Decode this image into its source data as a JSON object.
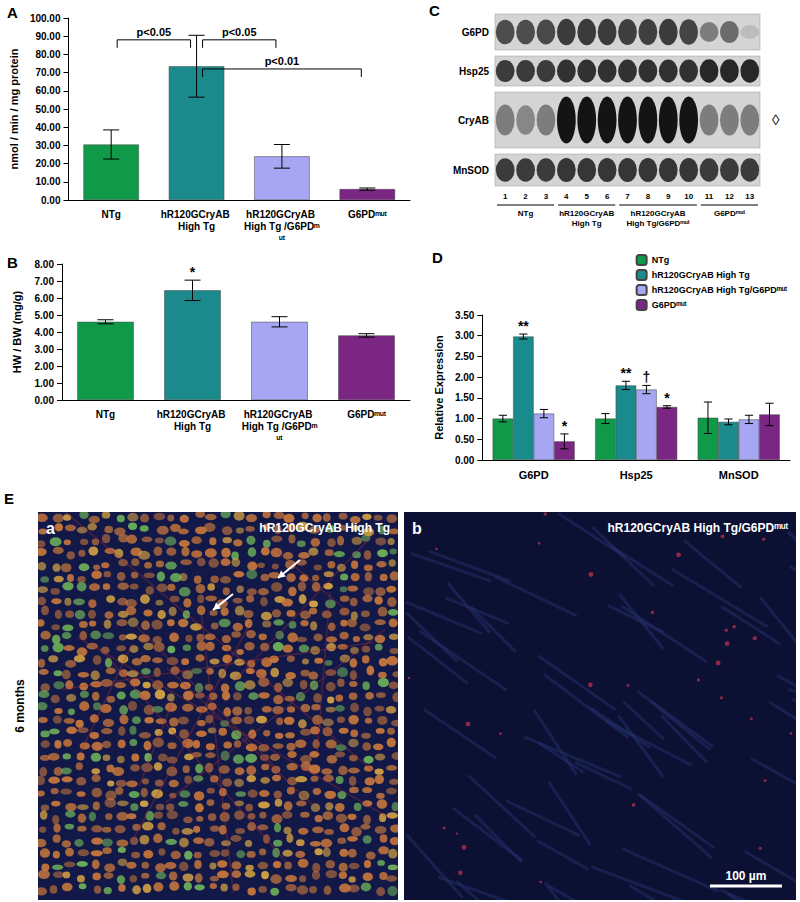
{
  "chart_data": [
    {
      "type": "bar",
      "title": "A",
      "ylabel": "nmol / min / mg protein",
      "categories": [
        "NTg",
        "hR120GCryAB High Tg",
        "hR120GCryAB High Tg /G6PDᵐᵘᵗ",
        "G6PDᵐᵘᵗ"
      ],
      "values": [
        30.5,
        73.5,
        24.0,
        6.0
      ],
      "errors": [
        8.0,
        17.0,
        6.5,
        0.6
      ],
      "colors": [
        "#11994a",
        "#1b8a8c",
        "#a6a6f2",
        "#7b2683"
      ],
      "ylim": [
        0,
        100
      ],
      "yticks": [
        {
          "value": 0,
          "label": "0.00"
        },
        {
          "value": 10,
          "label": "10.00"
        },
        {
          "value": 20,
          "label": "20.00"
        },
        {
          "value": 30,
          "label": "30.00"
        },
        {
          "value": 40,
          "label": "40.00"
        },
        {
          "value": 50,
          "label": "50.00"
        },
        {
          "value": 60,
          "label": "60.00"
        },
        {
          "value": 70,
          "label": "70.00"
        },
        {
          "value": 80,
          "label": "80.00"
        },
        {
          "value": 90,
          "label": "90.00"
        },
        {
          "value": 100,
          "label": "100.00"
        }
      ],
      "grid": false,
      "brackets": [
        {
          "from": "NTg",
          "to": "hR120GCryAB High Tg",
          "level": 88,
          "text": "p<0.05"
        },
        {
          "from": "hR120GCryAB High Tg",
          "to": "hR120GCryAB High Tg /G6PDᵐᵘᵗ",
          "level": 88,
          "text": "p<0.05"
        },
        {
          "from": "hR120GCryAB High Tg",
          "to": "G6PDᵐᵘᵗ",
          "level": 72,
          "text": "p<0.01"
        }
      ]
    },
    {
      "type": "bar",
      "title": "B",
      "ylabel": "HW / BW (mg/g)",
      "categories": [
        "NTg",
        "hR120GCryAB High Tg",
        "hR120GCryAB High Tg /G6PDᵐᵘᵗ",
        "G6PDᵐᵘᵗ"
      ],
      "values": [
        4.6,
        6.45,
        4.6,
        3.8
      ],
      "errors": [
        0.12,
        0.6,
        0.3,
        0.1
      ],
      "colors": [
        "#11994a",
        "#1b8a8c",
        "#a6a6f2",
        "#7b2683"
      ],
      "ylim": [
        0,
        8
      ],
      "yticks": [
        {
          "value": 0,
          "label": "0.00"
        },
        {
          "value": 1,
          "label": "1.00"
        },
        {
          "value": 2,
          "label": "2.00"
        },
        {
          "value": 3,
          "label": "3.00"
        },
        {
          "value": 4,
          "label": "4.00"
        },
        {
          "value": 5,
          "label": "5.00"
        },
        {
          "value": 6,
          "label": "6.00"
        },
        {
          "value": 7,
          "label": "7.00"
        },
        {
          "value": 8,
          "label": "8.00"
        }
      ],
      "grid": false,
      "markers": [
        {
          "category": "hR120GCryAB High Tg",
          "text": "*"
        }
      ]
    },
    {
      "type": "bar",
      "title": "D",
      "ylabel": "Relative Expression",
      "categories": [
        "G6PD",
        "Hsp25",
        "MnSOD"
      ],
      "series": [
        {
          "name": "NTg",
          "color": "#11994a",
          "values": [
            1.0,
            1.0,
            1.02
          ],
          "errors": [
            0.08,
            0.12,
            0.38
          ]
        },
        {
          "name": "hR120GCryAB High Tg",
          "color": "#1b8a8c",
          "values": [
            2.98,
            1.8,
            0.92
          ],
          "errors": [
            0.06,
            0.1,
            0.07
          ]
        },
        {
          "name": "hR120GCryAB High Tg/G6PDᵐᵘᵗ",
          "color": "#a6a6f2",
          "values": [
            1.12,
            1.7,
            0.98
          ],
          "errors": [
            0.1,
            0.1,
            0.1
          ]
        },
        {
          "name": "G6PDᵐᵘᵗ",
          "color": "#7b2683",
          "values": [
            0.45,
            1.28,
            1.1
          ],
          "errors": [
            0.18,
            0.03,
            0.27
          ]
        }
      ],
      "ylim": [
        0,
        3.5
      ],
      "yticks": [
        {
          "value": 0,
          "label": "0.00"
        },
        {
          "value": 0.5,
          "label": "0.50"
        },
        {
          "value": 1,
          "label": "1.00"
        },
        {
          "value": 1.5,
          "label": "1.50"
        },
        {
          "value": 2,
          "label": "2.00"
        },
        {
          "value": 2.5,
          "label": "2.50"
        },
        {
          "value": 3,
          "label": "3.00"
        },
        {
          "value": 3.5,
          "label": "3.50"
        }
      ],
      "grid": false,
      "legend": "upper right",
      "markers": [
        {
          "category": "G6PD",
          "series": "hR120GCryAB High Tg",
          "text": "**"
        },
        {
          "category": "G6PD",
          "series": "G6PDᵐᵘᵗ",
          "text": "*"
        },
        {
          "category": "Hsp25",
          "series": "hR120GCryAB High Tg",
          "text": "**"
        },
        {
          "category": "Hsp25",
          "series": "hR120GCryAB High Tg/G6PDᵐᵘᵗ",
          "text": "†"
        },
        {
          "category": "Hsp25",
          "series": "G6PDᵐᵘᵗ",
          "text": "*"
        }
      ]
    }
  ],
  "blot": {
    "title": "C",
    "rows": [
      {
        "label": "G6PD",
        "bands": [
          0.7,
          0.7,
          0.72,
          0.8,
          0.8,
          0.8,
          0.78,
          0.78,
          0.8,
          0.75,
          0.45,
          0.55,
          0.12
        ]
      },
      {
        "label": "Hsp25",
        "bands": [
          0.8,
          0.8,
          0.8,
          0.85,
          0.85,
          0.85,
          0.85,
          0.85,
          0.85,
          0.85,
          0.9,
          0.9,
          0.9
        ]
      },
      {
        "label": "CryAB",
        "bands": [
          0.45,
          0.4,
          0.45,
          1,
          1,
          1,
          1,
          1,
          1,
          1,
          0.45,
          0.45,
          0.45
        ]
      },
      {
        "label": "MnSOD",
        "bands": [
          0.8,
          0.8,
          0.8,
          0.82,
          0.82,
          0.82,
          0.82,
          0.82,
          0.82,
          0.82,
          0.8,
          0.8,
          0.8
        ]
      }
    ],
    "lanes": [
      "1",
      "2",
      "3",
      "4",
      "5",
      "6",
      "7",
      "8",
      "9",
      "10",
      "11",
      "12",
      "13"
    ],
    "groups": [
      {
        "label": "NTg",
        "lanes": [
          1,
          3
        ]
      },
      {
        "label": "hR120GCryAB High Tg",
        "lanes": [
          4,
          6
        ]
      },
      {
        "label": "hR120GCryAB High Tg/G6PDᵐᵘᵗ",
        "lanes": [
          7,
          10
        ]
      },
      {
        "label": "G6PDᵐᵘᵗ",
        "lanes": [
          11,
          13
        ]
      }
    ],
    "mark": {
      "row": "CryAB",
      "text": "◊"
    }
  },
  "micrographs": {
    "title": "E",
    "row_label": "6 months",
    "panels": [
      {
        "label": "a",
        "title": "hR120GCryAB High Tg",
        "arrows": 2
      },
      {
        "label": "b",
        "title": "hR120GCryAB High Tg/G6PDᵐᵘᵗ",
        "arrows": 0
      }
    ],
    "scale_bar": "100 µm"
  }
}
